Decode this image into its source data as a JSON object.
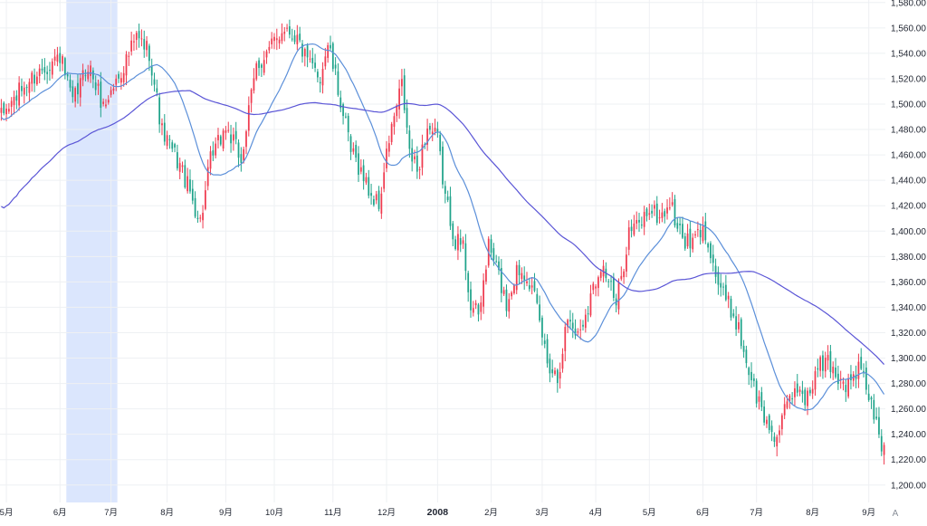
{
  "chart_data": {
    "type": "candlestick",
    "y_axis": {
      "position": "right",
      "range": [
        1192,
        1582
      ],
      "ticks": [
        1200,
        1220,
        1240,
        1260,
        1280,
        1300,
        1320,
        1340,
        1360,
        1380,
        1400,
        1420,
        1440,
        1460,
        1480,
        1500,
        1520,
        1540,
        1560,
        1580
      ],
      "tick_labels": [
        "1,200.00",
        "1,220.00",
        "1,240.00",
        "1,260.00",
        "1,280.00",
        "1,300.00",
        "1,320.00",
        "1,340.00",
        "1,360.00",
        "1,380.00",
        "1,400.00",
        "1,420.00",
        "1,440.00",
        "1,460.00",
        "1,480.00",
        "1,500.00",
        "1,520.00",
        "1,540.00",
        "1,560.00",
        "1,580.00"
      ]
    },
    "x_axis": {
      "ticks": [
        {
          "label": "5月",
          "index": 2
        },
        {
          "label": "6月",
          "index": 23
        },
        {
          "label": "7月",
          "index": 43
        },
        {
          "label": "8月",
          "index": 65
        },
        {
          "label": "9月",
          "index": 88
        },
        {
          "label": "10月",
          "index": 107
        },
        {
          "label": "11月",
          "index": 130
        },
        {
          "label": "12月",
          "index": 151
        },
        {
          "label": "2008",
          "index": 171
        },
        {
          "label": "2月",
          "index": 192
        },
        {
          "label": "3月",
          "index": 212
        },
        {
          "label": "4月",
          "index": 233
        },
        {
          "label": "5月",
          "index": 254
        },
        {
          "label": "6月",
          "index": 275
        },
        {
          "label": "7月",
          "index": 296
        },
        {
          "label": "8月",
          "index": 318
        },
        {
          "label": "9月",
          "index": 340
        }
      ]
    },
    "highlight_range": {
      "from_index": 26,
      "to_index": 45,
      "color": "#dbe6fd"
    },
    "bar_count": 347,
    "anchors": [
      [
        0,
        1490
      ],
      [
        8,
        1512
      ],
      [
        16,
        1528
      ],
      [
        23,
        1538
      ],
      [
        28,
        1500
      ],
      [
        34,
        1532
      ],
      [
        40,
        1498
      ],
      [
        46,
        1522
      ],
      [
        53,
        1552
      ],
      [
        58,
        1542
      ],
      [
        63,
        1478
      ],
      [
        70,
        1452
      ],
      [
        74,
        1430
      ],
      [
        78,
        1407
      ],
      [
        82,
        1455
      ],
      [
        88,
        1482
      ],
      [
        94,
        1456
      ],
      [
        100,
        1530
      ],
      [
        105,
        1542
      ],
      [
        111,
        1562
      ],
      [
        116,
        1552
      ],
      [
        120,
        1532
      ],
      [
        125,
        1522
      ],
      [
        128,
        1548
      ],
      [
        133,
        1502
      ],
      [
        137,
        1462
      ],
      [
        140,
        1452
      ],
      [
        145,
        1428
      ],
      [
        148,
        1420
      ],
      [
        152,
        1472
      ],
      [
        157,
        1515
      ],
      [
        160,
        1462
      ],
      [
        163,
        1447
      ],
      [
        167,
        1482
      ],
      [
        171,
        1472
      ],
      [
        174,
        1427
      ],
      [
        178,
        1393
      ],
      [
        181,
        1388
      ],
      [
        184,
        1342
      ],
      [
        187,
        1332
      ],
      [
        191,
        1388
      ],
      [
        194,
        1372
      ],
      [
        198,
        1342
      ],
      [
        202,
        1370
      ],
      [
        206,
        1368
      ],
      [
        210,
        1338
      ],
      [
        214,
        1298
      ],
      [
        218,
        1285
      ],
      [
        222,
        1332
      ],
      [
        226,
        1318
      ],
      [
        230,
        1342
      ],
      [
        235,
        1375
      ],
      [
        238,
        1362
      ],
      [
        241,
        1340
      ],
      [
        246,
        1400
      ],
      [
        250,
        1405
      ],
      [
        254,
        1418
      ],
      [
        258,
        1410
      ],
      [
        262,
        1422
      ],
      [
        266,
        1398
      ],
      [
        270,
        1388
      ],
      [
        274,
        1400
      ],
      [
        277,
        1395
      ],
      [
        280,
        1365
      ],
      [
        284,
        1345
      ],
      [
        288,
        1330
      ],
      [
        292,
        1298
      ],
      [
        296,
        1270
      ],
      [
        300,
        1248
      ],
      [
        304,
        1238
      ],
      [
        308,
        1262
      ],
      [
        312,
        1278
      ],
      [
        316,
        1268
      ],
      [
        320,
        1292
      ],
      [
        324,
        1298
      ],
      [
        328,
        1285
      ],
      [
        332,
        1278
      ],
      [
        336,
        1292
      ],
      [
        339,
        1278
      ],
      [
        342,
        1255
      ],
      [
        345,
        1230
      ],
      [
        346,
        1238
      ]
    ],
    "series": [
      {
        "name": "",
        "type": "moving-average",
        "period": 20,
        "color": "#5b8fd9"
      },
      {
        "name": "",
        "type": "moving-average",
        "period": 75,
        "color": "#5a55d6"
      }
    ],
    "colors": {
      "up": "#ef3b4f",
      "down": "#1fa38a",
      "grid": "#eef0f3",
      "text": "#1f2430"
    },
    "grid": true,
    "corner_label": "A"
  }
}
